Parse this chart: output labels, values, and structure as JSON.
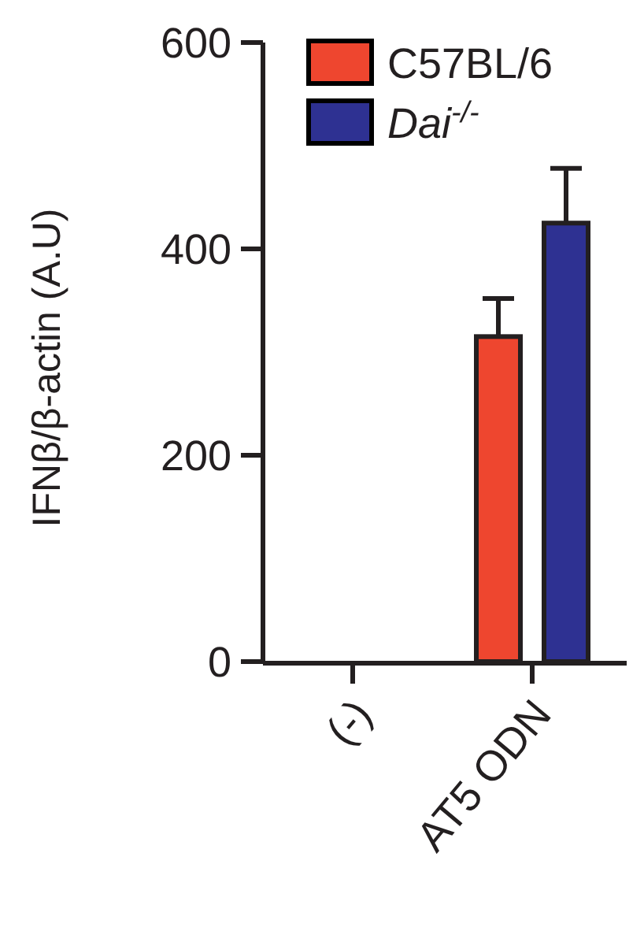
{
  "chart_data": {
    "type": "bar",
    "ylabel": "IFNβ/β-actin (A.U)",
    "categories": [
      "(-)",
      "AT5 ODN"
    ],
    "series": [
      {
        "name": "C57BL/6",
        "color": "#ee462f",
        "values": [
          0,
          315
        ],
        "errors": [
          null,
          37
        ]
      },
      {
        "name": "Dai$^{-/-}$",
        "color": "#2e3192",
        "values": [
          0,
          425
        ],
        "errors": [
          null,
          53
        ]
      }
    ],
    "ylim": [
      0,
      600
    ],
    "yticks": [
      0,
      200,
      400,
      600
    ],
    "legend": "top right"
  }
}
